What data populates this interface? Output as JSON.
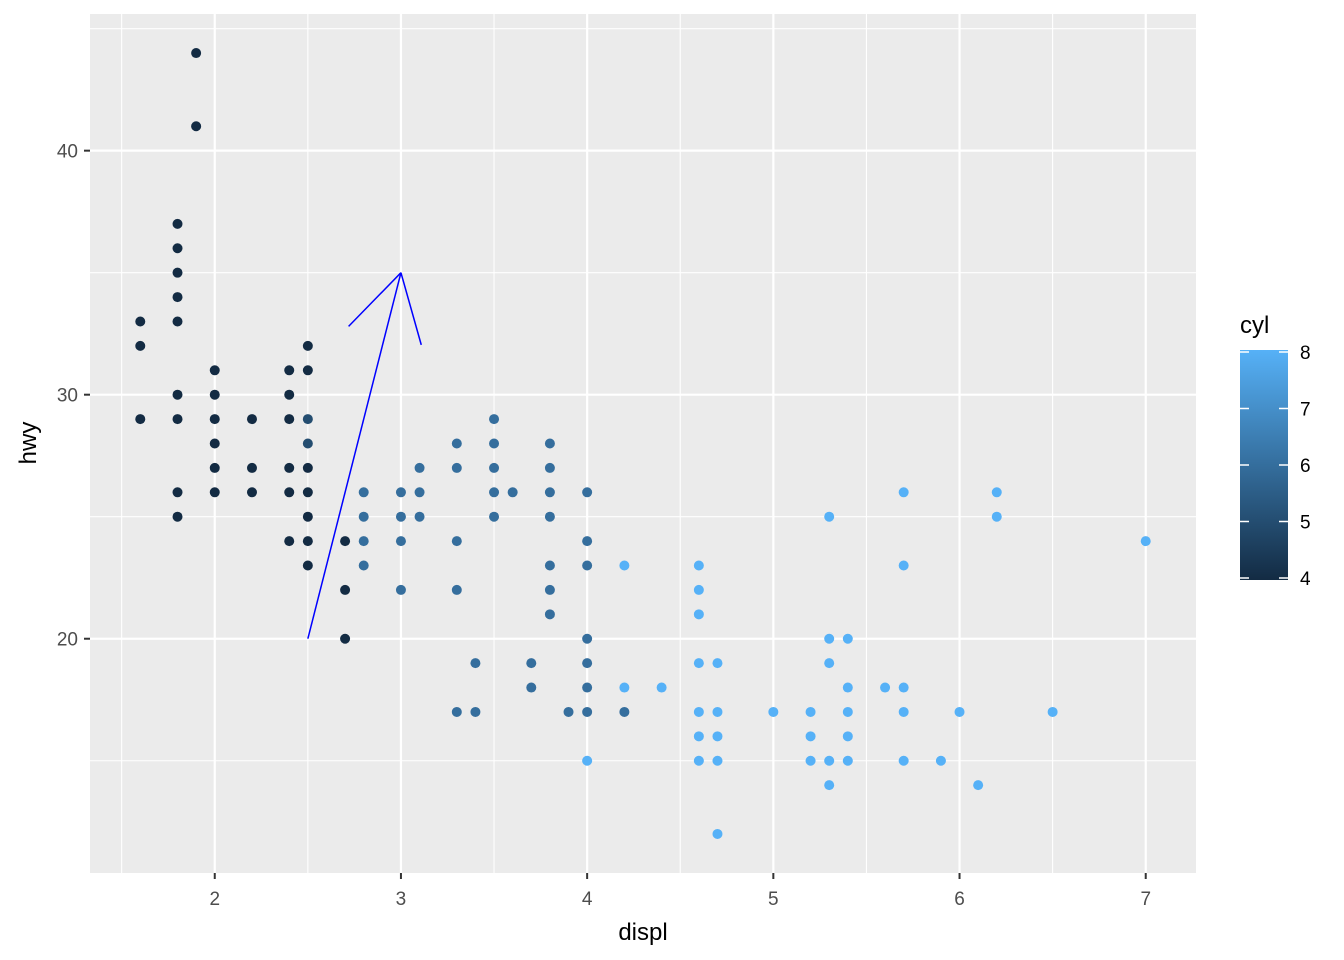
{
  "chart_data": {
    "type": "scatter",
    "title": "",
    "xlabel": "displ",
    "ylabel": "hwy",
    "xlim": [
      1.33,
      7.27
    ],
    "ylim": [
      10.4,
      45.6
    ],
    "x_ticks": [
      2,
      3,
      4,
      5,
      6,
      7
    ],
    "x_tick_labels": [
      "2",
      "3",
      "4",
      "5",
      "6",
      "7"
    ],
    "x_minor_ticks": [
      1.5,
      2.5,
      3.5,
      4.5,
      5.5,
      6.5
    ],
    "y_ticks": [
      20,
      30,
      40
    ],
    "y_tick_labels": [
      "20",
      "30",
      "40"
    ],
    "y_minor_ticks": [
      15,
      25,
      35,
      45
    ],
    "grid": true,
    "colors": {
      "panel_background": "#EBEBEB",
      "grid": "#FFFFFF",
      "axis_text": "#4D4D4D",
      "low": "#132B43",
      "high": "#56B1F7",
      "arrow": "#0000FF"
    },
    "color_scale": {
      "title": "cyl",
      "range": [
        4,
        8
      ],
      "breaks": [
        4,
        5,
        6,
        7,
        8
      ],
      "break_labels": [
        "4",
        "5",
        "6",
        "7",
        "8"
      ],
      "placement": "right"
    },
    "annotation": {
      "type": "arrow",
      "from": [
        2.5,
        20
      ],
      "to": [
        3,
        35
      ],
      "head": "open"
    },
    "points": [
      {
        "x": 1.6,
        "y": 33,
        "cyl": 4
      },
      {
        "x": 1.6,
        "y": 32,
        "cyl": 4
      },
      {
        "x": 1.6,
        "y": 29,
        "cyl": 4
      },
      {
        "x": 1.8,
        "y": 37,
        "cyl": 4
      },
      {
        "x": 1.8,
        "y": 36,
        "cyl": 4
      },
      {
        "x": 1.8,
        "y": 35,
        "cyl": 4
      },
      {
        "x": 1.8,
        "y": 34,
        "cyl": 4
      },
      {
        "x": 1.8,
        "y": 33,
        "cyl": 4
      },
      {
        "x": 1.8,
        "y": 30,
        "cyl": 4
      },
      {
        "x": 1.8,
        "y": 29,
        "cyl": 4
      },
      {
        "x": 1.8,
        "y": 26,
        "cyl": 4
      },
      {
        "x": 1.8,
        "y": 25,
        "cyl": 4
      },
      {
        "x": 1.9,
        "y": 44,
        "cyl": 4
      },
      {
        "x": 1.9,
        "y": 41,
        "cyl": 4
      },
      {
        "x": 2.0,
        "y": 31,
        "cyl": 4
      },
      {
        "x": 2.0,
        "y": 30,
        "cyl": 4
      },
      {
        "x": 2.0,
        "y": 29,
        "cyl": 4
      },
      {
        "x": 2.0,
        "y": 28,
        "cyl": 4
      },
      {
        "x": 2.0,
        "y": 27,
        "cyl": 4
      },
      {
        "x": 2.0,
        "y": 26,
        "cyl": 4
      },
      {
        "x": 2.2,
        "y": 29,
        "cyl": 4
      },
      {
        "x": 2.2,
        "y": 27,
        "cyl": 4
      },
      {
        "x": 2.2,
        "y": 26,
        "cyl": 4
      },
      {
        "x": 2.4,
        "y": 31,
        "cyl": 4
      },
      {
        "x": 2.4,
        "y": 30,
        "cyl": 4
      },
      {
        "x": 2.4,
        "y": 29,
        "cyl": 4
      },
      {
        "x": 2.4,
        "y": 27,
        "cyl": 4
      },
      {
        "x": 2.4,
        "y": 26,
        "cyl": 4
      },
      {
        "x": 2.4,
        "y": 24,
        "cyl": 4
      },
      {
        "x": 2.5,
        "y": 32,
        "cyl": 4
      },
      {
        "x": 2.5,
        "y": 31,
        "cyl": 4
      },
      {
        "x": 2.5,
        "y": 29,
        "cyl": 5
      },
      {
        "x": 2.5,
        "y": 28,
        "cyl": 5
      },
      {
        "x": 2.5,
        "y": 27,
        "cyl": 4
      },
      {
        "x": 2.5,
        "y": 26,
        "cyl": 4
      },
      {
        "x": 2.5,
        "y": 25,
        "cyl": 4
      },
      {
        "x": 2.5,
        "y": 24,
        "cyl": 4
      },
      {
        "x": 2.5,
        "y": 23,
        "cyl": 4
      },
      {
        "x": 2.7,
        "y": 24,
        "cyl": 4
      },
      {
        "x": 2.7,
        "y": 22,
        "cyl": 4
      },
      {
        "x": 2.7,
        "y": 20,
        "cyl": 4
      },
      {
        "x": 2.8,
        "y": 26,
        "cyl": 6
      },
      {
        "x": 2.8,
        "y": 25,
        "cyl": 6
      },
      {
        "x": 2.8,
        "y": 24,
        "cyl": 6
      },
      {
        "x": 2.8,
        "y": 23,
        "cyl": 6
      },
      {
        "x": 3.0,
        "y": 26,
        "cyl": 6
      },
      {
        "x": 3.0,
        "y": 25,
        "cyl": 6
      },
      {
        "x": 3.0,
        "y": 24,
        "cyl": 6
      },
      {
        "x": 3.0,
        "y": 22,
        "cyl": 6
      },
      {
        "x": 3.1,
        "y": 27,
        "cyl": 6
      },
      {
        "x": 3.1,
        "y": 26,
        "cyl": 6
      },
      {
        "x": 3.1,
        "y": 25,
        "cyl": 6
      },
      {
        "x": 3.3,
        "y": 28,
        "cyl": 6
      },
      {
        "x": 3.3,
        "y": 27,
        "cyl": 6
      },
      {
        "x": 3.3,
        "y": 24,
        "cyl": 6
      },
      {
        "x": 3.3,
        "y": 22,
        "cyl": 6
      },
      {
        "x": 3.3,
        "y": 17,
        "cyl": 6
      },
      {
        "x": 3.4,
        "y": 19,
        "cyl": 6
      },
      {
        "x": 3.4,
        "y": 17,
        "cyl": 6
      },
      {
        "x": 3.5,
        "y": 29,
        "cyl": 6
      },
      {
        "x": 3.5,
        "y": 28,
        "cyl": 6
      },
      {
        "x": 3.5,
        "y": 27,
        "cyl": 6
      },
      {
        "x": 3.5,
        "y": 26,
        "cyl": 6
      },
      {
        "x": 3.5,
        "y": 25,
        "cyl": 6
      },
      {
        "x": 3.6,
        "y": 26,
        "cyl": 6
      },
      {
        "x": 3.7,
        "y": 19,
        "cyl": 6
      },
      {
        "x": 3.7,
        "y": 18,
        "cyl": 6
      },
      {
        "x": 3.8,
        "y": 28,
        "cyl": 6
      },
      {
        "x": 3.8,
        "y": 27,
        "cyl": 6
      },
      {
        "x": 3.8,
        "y": 26,
        "cyl": 6
      },
      {
        "x": 3.8,
        "y": 25,
        "cyl": 6
      },
      {
        "x": 3.8,
        "y": 23,
        "cyl": 6
      },
      {
        "x": 3.8,
        "y": 22,
        "cyl": 6
      },
      {
        "x": 3.8,
        "y": 21,
        "cyl": 6
      },
      {
        "x": 3.9,
        "y": 17,
        "cyl": 6
      },
      {
        "x": 4.0,
        "y": 26,
        "cyl": 6
      },
      {
        "x": 4.0,
        "y": 24,
        "cyl": 6
      },
      {
        "x": 4.0,
        "y": 23,
        "cyl": 6
      },
      {
        "x": 4.0,
        "y": 20,
        "cyl": 6
      },
      {
        "x": 4.0,
        "y": 19,
        "cyl": 6
      },
      {
        "x": 4.0,
        "y": 18,
        "cyl": 6
      },
      {
        "x": 4.0,
        "y": 17,
        "cyl": 6
      },
      {
        "x": 4.0,
        "y": 15,
        "cyl": 8
      },
      {
        "x": 4.2,
        "y": 23,
        "cyl": 8
      },
      {
        "x": 4.2,
        "y": 18,
        "cyl": 8
      },
      {
        "x": 4.2,
        "y": 17,
        "cyl": 6
      },
      {
        "x": 4.4,
        "y": 18,
        "cyl": 8
      },
      {
        "x": 4.6,
        "y": 23,
        "cyl": 8
      },
      {
        "x": 4.6,
        "y": 22,
        "cyl": 8
      },
      {
        "x": 4.6,
        "y": 21,
        "cyl": 8
      },
      {
        "x": 4.6,
        "y": 19,
        "cyl": 8
      },
      {
        "x": 4.6,
        "y": 17,
        "cyl": 8
      },
      {
        "x": 4.6,
        "y": 16,
        "cyl": 8
      },
      {
        "x": 4.6,
        "y": 15,
        "cyl": 8
      },
      {
        "x": 4.7,
        "y": 19,
        "cyl": 8
      },
      {
        "x": 4.7,
        "y": 17,
        "cyl": 8
      },
      {
        "x": 4.7,
        "y": 16,
        "cyl": 8
      },
      {
        "x": 4.7,
        "y": 15,
        "cyl": 8
      },
      {
        "x": 4.7,
        "y": 12,
        "cyl": 8
      },
      {
        "x": 5.0,
        "y": 17,
        "cyl": 8
      },
      {
        "x": 5.2,
        "y": 17,
        "cyl": 8
      },
      {
        "x": 5.2,
        "y": 16,
        "cyl": 8
      },
      {
        "x": 5.2,
        "y": 15,
        "cyl": 8
      },
      {
        "x": 5.3,
        "y": 25,
        "cyl": 8
      },
      {
        "x": 5.3,
        "y": 20,
        "cyl": 8
      },
      {
        "x": 5.3,
        "y": 19,
        "cyl": 8
      },
      {
        "x": 5.3,
        "y": 15,
        "cyl": 8
      },
      {
        "x": 5.3,
        "y": 14,
        "cyl": 8
      },
      {
        "x": 5.4,
        "y": 20,
        "cyl": 8
      },
      {
        "x": 5.4,
        "y": 18,
        "cyl": 8
      },
      {
        "x": 5.4,
        "y": 17,
        "cyl": 8
      },
      {
        "x": 5.4,
        "y": 16,
        "cyl": 8
      },
      {
        "x": 5.4,
        "y": 15,
        "cyl": 8
      },
      {
        "x": 5.6,
        "y": 18,
        "cyl": 8
      },
      {
        "x": 5.7,
        "y": 26,
        "cyl": 8
      },
      {
        "x": 5.7,
        "y": 23,
        "cyl": 8
      },
      {
        "x": 5.7,
        "y": 18,
        "cyl": 8
      },
      {
        "x": 5.7,
        "y": 17,
        "cyl": 8
      },
      {
        "x": 5.7,
        "y": 15,
        "cyl": 8
      },
      {
        "x": 5.9,
        "y": 15,
        "cyl": 8
      },
      {
        "x": 6.0,
        "y": 17,
        "cyl": 8
      },
      {
        "x": 6.1,
        "y": 14,
        "cyl": 8
      },
      {
        "x": 6.2,
        "y": 26,
        "cyl": 8
      },
      {
        "x": 6.2,
        "y": 25,
        "cyl": 8
      },
      {
        "x": 6.5,
        "y": 17,
        "cyl": 8
      },
      {
        "x": 7.0,
        "y": 24,
        "cyl": 8
      }
    ]
  }
}
